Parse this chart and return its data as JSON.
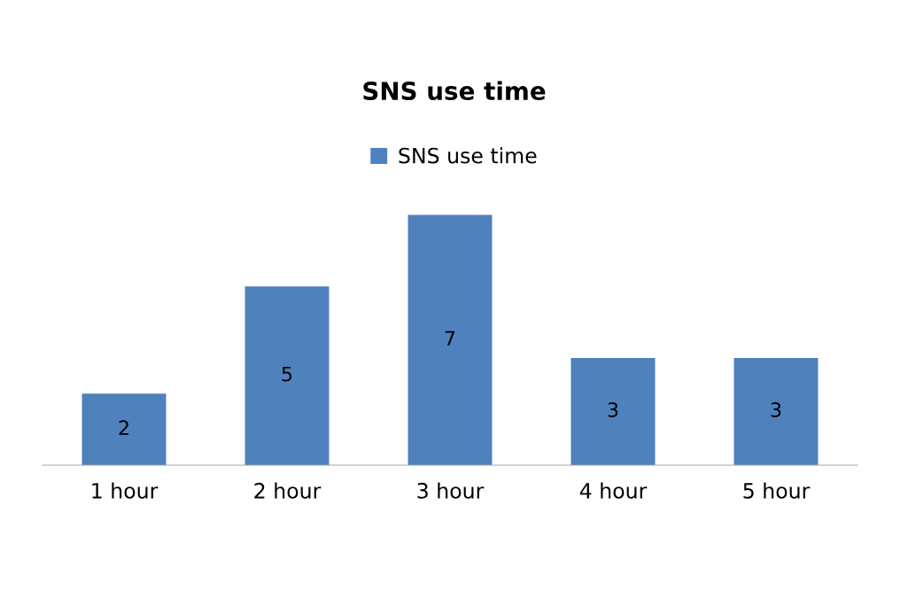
{
  "chart_data": {
    "type": "bar",
    "title": "SNS use time",
    "categories": [
      "1 hour",
      "2 hour",
      "3 hour",
      "4 hour",
      "5 hour"
    ],
    "series": [
      {
        "name": "SNS use time",
        "color": "#4f81bd",
        "values": [
          2,
          5,
          7,
          3,
          3
        ]
      }
    ],
    "data_labels": true,
    "legend": "top",
    "grid": false,
    "tick_labels": "x"
  }
}
